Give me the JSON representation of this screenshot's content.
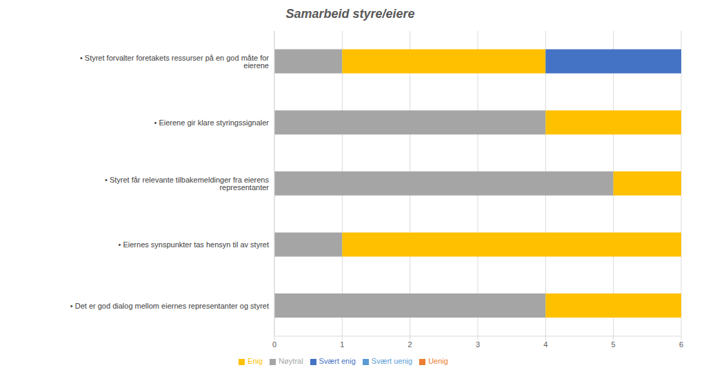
{
  "chart_data": {
    "type": "bar",
    "title": "Samarbeid styre/eiere",
    "orientation": "horizontal",
    "stacked": true,
    "grid": true,
    "legend": "bottom",
    "categories": [
      "• Styret forvalter foretakets ressurser på en god måte for eierene",
      "• Eierene gir klare styringssignaler",
      "• Styret får relevante tilbakemeldinger fra eierens representanter",
      "• Eiernes synspunkter tas hensyn til av styret",
      "• Det er god dialog mellom eiernes representanter og styret"
    ],
    "series": [
      {
        "name": "Svært uenig",
        "color": "#5b9bd5",
        "values": [
          0,
          0,
          0,
          0,
          0
        ]
      },
      {
        "name": "Uenig",
        "color": "#ed7d31",
        "values": [
          0,
          0,
          0,
          0,
          0
        ]
      },
      {
        "name": "Nøytral",
        "color": "#a5a5a5",
        "values": [
          1,
          4,
          5,
          1,
          4
        ]
      },
      {
        "name": "Enig",
        "color": "#ffc000",
        "values": [
          3,
          2,
          1,
          5,
          2
        ]
      },
      {
        "name": "Svært enig",
        "color": "#4472c4",
        "values": [
          2,
          0,
          0,
          0,
          0
        ]
      }
    ],
    "xlim": [
      0,
      6
    ],
    "xticks": [
      0,
      1,
      2,
      3,
      4,
      5,
      6
    ]
  }
}
